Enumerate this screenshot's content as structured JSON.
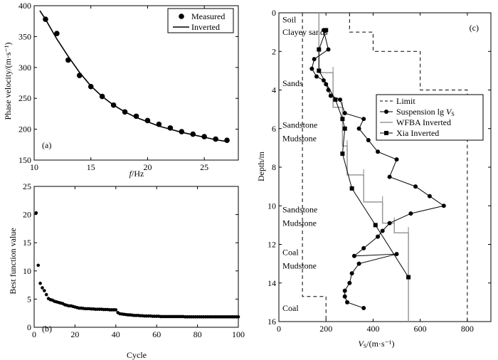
{
  "chart_data": [
    {
      "type": "scatter",
      "panel_label": "(a)",
      "xlabel_italic": "f",
      "xlabel_rest": "/Hz",
      "ylabel": "Phase velocity/(m·s⁻¹)",
      "xlim": [
        10,
        28
      ],
      "ylim": [
        150,
        400
      ],
      "xticks": [
        10,
        15,
        20,
        25
      ],
      "yticks": [
        150,
        200,
        250,
        300,
        350,
        400
      ],
      "legend_position": "top-right",
      "series": [
        {
          "name": "Measured",
          "style": "markers",
          "x": [
            11,
            12,
            13,
            14,
            15,
            16,
            17,
            18,
            19,
            20,
            21,
            22,
            23,
            24,
            25,
            26,
            27
          ],
          "y": [
            378,
            355,
            312,
            287,
            269,
            253,
            239,
            228,
            221,
            214,
            208,
            202,
            196,
            192,
            188,
            184,
            182
          ]
        },
        {
          "name": "Inverted",
          "style": "line",
          "x": [
            10.5,
            11,
            12,
            13,
            14,
            15,
            16,
            17,
            18,
            19,
            20,
            21,
            22,
            23,
            24,
            25,
            26,
            27
          ],
          "y": [
            392,
            378,
            346,
            318,
            292,
            270,
            253,
            239,
            228,
            219,
            212,
            205,
            200,
            195,
            191,
            187,
            183,
            180
          ]
        }
      ]
    },
    {
      "type": "scatter",
      "panel_label": "(b)",
      "xlabel": "Cycle",
      "ylabel": "Best function value",
      "xlim": [
        0,
        100
      ],
      "ylim": [
        0,
        25
      ],
      "xticks": [
        0,
        20,
        40,
        60,
        80,
        100
      ],
      "yticks": [
        0,
        5,
        10,
        15,
        20,
        25
      ],
      "series": [
        {
          "name": "Best function value",
          "x": [
            1,
            2,
            3,
            4,
            5,
            6,
            7,
            8,
            9,
            10,
            11,
            12,
            13,
            14,
            15,
            16,
            17,
            18,
            19,
            20,
            21,
            22,
            23,
            24,
            25,
            26,
            27,
            28,
            29,
            30,
            31,
            32,
            33,
            34,
            35,
            36,
            37,
            38,
            39,
            40,
            41,
            42,
            43,
            44,
            45,
            46,
            47,
            48,
            49,
            50,
            51,
            52,
            53,
            54,
            55,
            56,
            57,
            58,
            59,
            60,
            61,
            62,
            63,
            64,
            65,
            66,
            67,
            68,
            69,
            70,
            71,
            72,
            73,
            74,
            75,
            76,
            77,
            78,
            79,
            80,
            81,
            82,
            83,
            84,
            85,
            86,
            87,
            88,
            89,
            90,
            91,
            92,
            93,
            94,
            95,
            96,
            97,
            98,
            99,
            100
          ],
          "y": [
            20.3,
            11.0,
            7.8,
            7.0,
            6.5,
            5.8,
            5.1,
            4.9,
            4.8,
            4.6,
            4.5,
            4.4,
            4.3,
            4.2,
            4.0,
            3.9,
            3.8,
            3.8,
            3.7,
            3.6,
            3.5,
            3.4,
            3.4,
            3.35,
            3.3,
            3.3,
            3.3,
            3.25,
            3.25,
            3.2,
            3.2,
            3.2,
            3.2,
            3.15,
            3.15,
            3.15,
            3.1,
            3.1,
            3.1,
            3.1,
            2.6,
            2.4,
            2.35,
            2.3,
            2.25,
            2.2,
            2.2,
            2.15,
            2.1,
            2.1,
            2.1,
            2.05,
            2.05,
            2.0,
            2.0,
            2.0,
            2.0,
            1.95,
            1.95,
            1.95,
            1.95,
            1.9,
            1.9,
            1.9,
            1.9,
            1.9,
            1.9,
            1.9,
            1.9,
            1.9,
            1.9,
            1.9,
            1.9,
            1.85,
            1.85,
            1.85,
            1.85,
            1.85,
            1.85,
            1.85,
            1.85,
            1.85,
            1.85,
            1.85,
            1.85,
            1.85,
            1.85,
            1.85,
            1.85,
            1.85,
            1.85,
            1.85,
            1.85,
            1.85,
            1.85,
            1.85,
            1.85,
            1.85,
            1.85,
            1.85
          ]
        }
      ]
    },
    {
      "type": "line",
      "panel_label": "(c)",
      "xlabel_italic": "V",
      "xlabel_sub": "S",
      "xlabel_rest": "/(m·s⁻¹)",
      "ylabel": "Depth/m",
      "xlim": [
        0,
        900
      ],
      "ylim": [
        0,
        16
      ],
      "y_inverted": true,
      "x_axis_position": "bottom",
      "xticks": [
        0,
        200,
        400,
        600,
        800
      ],
      "yticks": [
        0,
        2,
        4,
        6,
        8,
        10,
        12,
        14,
        16
      ],
      "legend_position": "top-right",
      "legend_title_gs": "Suspension lg ",
      "layers": [
        {
          "name": "Soil",
          "depth": 0.35
        },
        {
          "name": "Clayey sands",
          "depth": 1.0
        },
        {
          "name": "Sands",
          "depth": 3.65
        },
        {
          "name": "Sandstone",
          "depth": 5.8
        },
        {
          "name": "Mudstone",
          "depth": 6.5
        },
        {
          "name": "Sandstone",
          "depth": 10.2
        },
        {
          "name": "Mudstone",
          "depth": 10.9
        },
        {
          "name": "Coal",
          "depth": 12.4
        },
        {
          "name": "Mudstone",
          "depth": 13.1
        },
        {
          "name": "Coal",
          "depth": 15.3
        }
      ],
      "series": [
        {
          "name": "Limit",
          "style": "dashed",
          "lower": {
            "x": [
              100,
              100,
              100,
              200,
              200
            ],
            "y": [
              0,
              14.7,
              14.7,
              14.7,
              16
            ]
          },
          "upper": {
            "x": [
              300,
              300,
              400,
              400,
              600,
              600,
              800,
              800
            ],
            "y": [
              0,
              1,
              1,
              2,
              2,
              4,
              4,
              16
            ]
          }
        },
        {
          "name": "Suspension lg V",
          "style": "line-circle",
          "x": [
            190,
            210,
            150,
            140,
            160,
            190,
            200,
            210,
            220,
            260,
            280,
            360,
            340,
            380,
            420,
            500,
            470,
            580,
            640,
            700,
            560,
            470,
            440,
            420,
            360,
            320,
            500,
            340,
            310,
            300,
            280,
            280,
            290,
            360
          ],
          "y": [
            0.9,
            1.9,
            2.4,
            2.9,
            3.3,
            3.5,
            3.7,
            4.0,
            4.3,
            4.5,
            5.2,
            5.5,
            6.0,
            6.6,
            7.2,
            7.6,
            8.5,
            9.0,
            9.5,
            10.0,
            10.4,
            10.9,
            11.3,
            11.6,
            12.2,
            12.6,
            12.5,
            13.0,
            13.5,
            14.0,
            14.4,
            14.7,
            15.0,
            15.3
          ]
        },
        {
          "name": "WFBA Inverted",
          "style": "gray-step",
          "x": [
            170,
            170,
            230,
            230,
            270,
            270,
            290,
            290,
            360,
            360,
            440,
            440,
            490,
            490,
            550,
            550
          ],
          "y": [
            0,
            3.1,
            3.1,
            4.9,
            4.9,
            6.9,
            6.9,
            8.4,
            8.4,
            9.8,
            9.8,
            10.9,
            10.9,
            11.4,
            11.4,
            16
          ]
        },
        {
          "name": "Xia Inverted",
          "style": "line-square",
          "x": [
            200,
            170,
            170,
            240,
            270,
            280,
            270,
            310,
            410,
            550
          ],
          "y": [
            0.9,
            1.9,
            3.0,
            4.5,
            5.5,
            6.0,
            7.3,
            9.1,
            11.0,
            13.7
          ]
        }
      ]
    }
  ]
}
